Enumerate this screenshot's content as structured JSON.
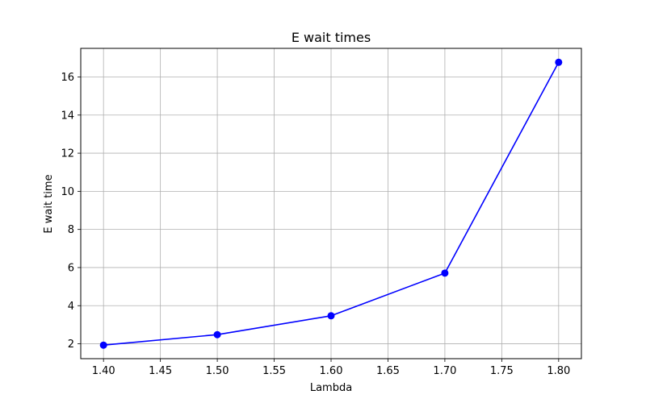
{
  "chart_data": {
    "type": "line",
    "title": "E wait times",
    "xlabel": "Lambda",
    "ylabel": "E wait time",
    "xlim": [
      1.38,
      1.82
    ],
    "ylim": [
      1.22,
      17.5
    ],
    "xticks": [
      1.4,
      1.45,
      1.5,
      1.55,
      1.6,
      1.65,
      1.7,
      1.75,
      1.8
    ],
    "xtick_labels": [
      "1.40",
      "1.45",
      "1.50",
      "1.55",
      "1.60",
      "1.65",
      "1.70",
      "1.75",
      "1.80"
    ],
    "yticks": [
      2,
      4,
      6,
      8,
      10,
      12,
      14,
      16
    ],
    "ytick_labels": [
      "2",
      "4",
      "6",
      "8",
      "10",
      "12",
      "14",
      "16"
    ],
    "grid": true,
    "series": [
      {
        "color": "#0000ff",
        "marker": "circle",
        "x": [
          1.4,
          1.5,
          1.6,
          1.7,
          1.8
        ],
        "y": [
          1.93,
          2.48,
          3.47,
          5.71,
          16.77
        ]
      }
    ]
  }
}
